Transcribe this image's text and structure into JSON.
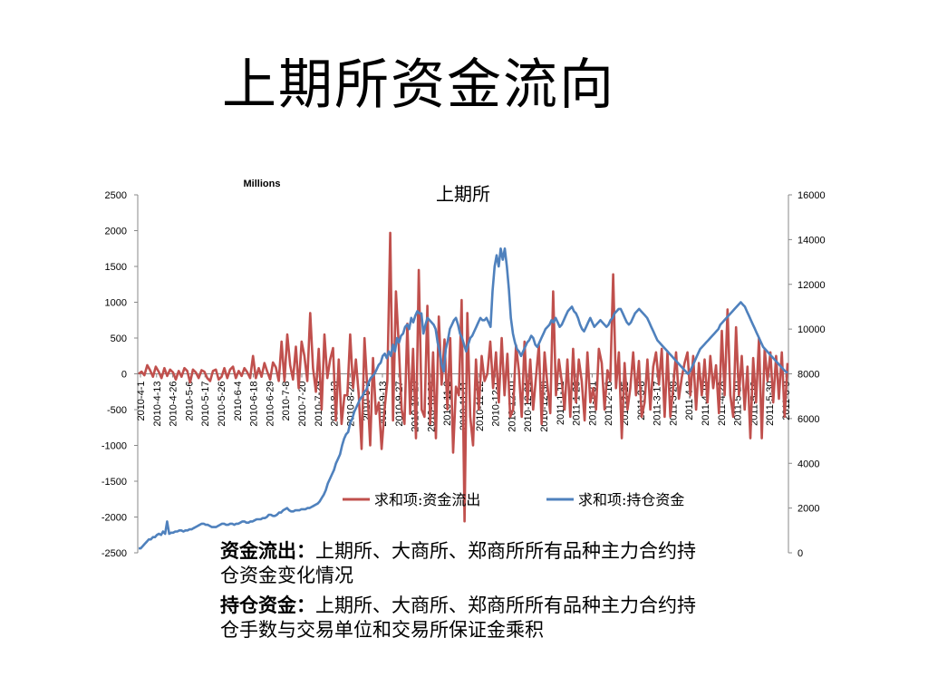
{
  "slide": {
    "title": "上期所资金流向"
  },
  "chart_data": {
    "type": "line",
    "title": "上期所",
    "unit_label": "Millions",
    "grid": false,
    "legend_position": "bottom-inside",
    "left_axis": {
      "min": -2500,
      "max": 2500,
      "step": 500,
      "ticks": [
        "2500",
        "2000",
        "1500",
        "1000",
        "500",
        "0",
        "-500",
        "-1000",
        "-1500",
        "-2000",
        "-2500"
      ]
    },
    "right_axis": {
      "min": 0,
      "max": 16000,
      "step": 2000,
      "ticks": [
        "16000",
        "14000",
        "12000",
        "10000",
        "8000",
        "6000",
        "4000",
        "2000",
        "0"
      ]
    },
    "x_tick_labels": [
      "2010-4-1",
      "2010-4-13",
      "2010-4-26",
      "2010-5-6",
      "2010-5-17",
      "2010-5-26",
      "2010-6-4",
      "2010-6-18",
      "2010-6-29",
      "2010-7-8",
      "2010-7-20",
      "2010-7-29",
      "2010-8-13",
      "2010-8-24",
      "2010-9-2",
      "2010-9-13",
      "2010-9-27",
      "2010-10-13",
      "2010-10-22",
      "2010-11-2",
      "2010-11-11",
      "2010-11-22",
      "2010-12-1",
      "2010-12-10",
      "2010-12-21",
      "2010-12-30",
      "2011-1-11",
      "2011-1-20",
      "2011-1-31",
      "2011-2-16",
      "2011-2-25",
      "2011-3-8",
      "2011-3-17",
      "2011-3-28",
      "2011-4-8",
      "2011-4-19",
      "2011-4-28",
      "2011-5-10",
      "2011-5-19",
      "2011-5-30",
      "2011-6-9"
    ],
    "series": [
      {
        "name": "求和项:资金流出",
        "axis": "left",
        "color": "#C0504D",
        "values": [
          0,
          30,
          -20,
          120,
          50,
          -40,
          100,
          30,
          -60,
          80,
          -30,
          60,
          20,
          -80,
          40,
          -40,
          80,
          40,
          -120,
          60,
          20,
          -60,
          50,
          30,
          -60,
          -100,
          40,
          60,
          -80,
          -40,
          80,
          -60,
          60,
          100,
          -60,
          40,
          -30,
          80,
          20,
          -60,
          250,
          -60,
          80,
          -40,
          150,
          30,
          -80,
          160,
          90,
          -100,
          450,
          -100,
          550,
          120,
          -80,
          380,
          -200,
          450,
          250,
          -100,
          850,
          80,
          -250,
          350,
          -500,
          550,
          -60,
          200,
          360,
          -650,
          200,
          -700,
          -300,
          -300,
          550,
          -200,
          200,
          -300,
          -1050,
          500,
          -200,
          -1000,
          220,
          -560,
          -400,
          -1050,
          -500,
          -100,
          1970,
          -650,
          1150,
          400,
          -500,
          -700,
          700,
          -560,
          350,
          -900,
          1450,
          -500,
          -600,
          950,
          -700,
          300,
          -900,
          800,
          -150,
          480,
          -500,
          500,
          -1100,
          -180,
          -300,
          1030,
          -2060,
          850,
          -600,
          -1000,
          200,
          -500,
          250,
          -100,
          0,
          450,
          -200,
          300,
          -400,
          500,
          -300,
          280,
          -600,
          -500,
          400,
          50,
          -600,
          450,
          -400,
          200,
          -500,
          -50,
          400,
          -700,
          300,
          -150,
          -550,
          1150,
          -300,
          200,
          -100,
          -500,
          200,
          -600,
          350,
          -400,
          200,
          -100,
          -650,
          300,
          -400,
          -200,
          -500,
          350,
          150,
          -500,
          50,
          -100,
          1390,
          -200,
          300,
          -900,
          150,
          -500,
          -200,
          300,
          -300,
          180,
          -600,
          -400,
          200,
          -500,
          100,
          300,
          -150,
          350,
          -600,
          300,
          -600,
          -200,
          300,
          -350,
          -50,
          150,
          300,
          -300,
          250,
          -500,
          150,
          -300,
          200,
          -400,
          250,
          -200,
          120,
          -550,
          600,
          -300,
          900,
          -300,
          -600,
          650,
          -300,
          250,
          -500,
          100,
          -900,
          220,
          -400,
          500,
          -900,
          350,
          -100,
          300,
          -400,
          250,
          -350,
          300,
          -600,
          150
        ]
      },
      {
        "name": "求和项:持仓资金",
        "axis": "right",
        "color": "#4F81BD",
        "values": [
          200,
          200,
          300,
          400,
          500,
          600,
          600,
          700,
          700,
          800,
          850,
          800,
          950,
          850,
          1400,
          850,
          900,
          900,
          950,
          950,
          1000,
          1000,
          950,
          1000,
          1000,
          1050,
          1050,
          1100,
          1150,
          1200,
          1250,
          1300,
          1300,
          1250,
          1250,
          1200,
          1150,
          1150,
          1150,
          1200,
          1250,
          1300,
          1300,
          1250,
          1250,
          1300,
          1300,
          1250,
          1300,
          1300,
          1350,
          1400,
          1400,
          1350,
          1350,
          1400,
          1400,
          1450,
          1500,
          1500,
          1500,
          1550,
          1550,
          1600,
          1700,
          1700,
          1650,
          1650,
          1700,
          1800,
          1800,
          1900,
          1950,
          2000,
          1900,
          1850,
          1850,
          1900,
          1900,
          1900,
          1950,
          1950,
          1950,
          2000,
          2000,
          2050,
          2100,
          2150,
          2200,
          2300,
          2450,
          2600,
          2800,
          3100,
          3300,
          3500,
          3700,
          4000,
          4200,
          4400,
          4800,
          5100,
          5300,
          5400,
          5800,
          6000,
          6300,
          6500,
          6700,
          6900,
          7000,
          7200,
          7300,
          7600,
          7800,
          7900,
          8000,
          8200,
          8400,
          8500,
          8800,
          8900,
          8700,
          9000,
          8800,
          9300,
          9000,
          9600,
          9400,
          9700,
          9800,
          10100,
          10200,
          10000,
          10500,
          10300,
          10600,
          10800,
          10700,
          10700,
          9800,
          10200,
          10500,
          10400,
          10300,
          10200,
          10000,
          9400,
          9000,
          8400,
          8100,
          9100,
          9500,
          10000,
          10200,
          10400,
          10500,
          10200,
          9800,
          9600,
          9300,
          9000,
          9300,
          9600,
          9700,
          9900,
          10100,
          10300,
          10500,
          10400,
          10400,
          10500,
          10300,
          10100,
          11700,
          12800,
          13300,
          12800,
          13600,
          13100,
          13600,
          12800,
          11800,
          10500,
          9800,
          9400,
          9100,
          9000,
          8800,
          9000,
          9200,
          9400,
          9500,
          9700,
          9600,
          9300,
          9200,
          9400,
          9600,
          9800,
          10000,
          10100,
          10200,
          10400,
          10300,
          10500,
          10300,
          10100,
          10200,
          10400,
          10600,
          10800,
          10900,
          11000,
          10800,
          10700,
          10500,
          10200,
          10000,
          9900,
          10100,
          10300,
          10500,
          10300,
          10100,
          10200,
          10300,
          10400,
          10300,
          10200,
          10100,
          10200,
          10400,
          10500,
          10700,
          10800,
          10900,
          10900,
          10700,
          10500,
          10300,
          10200,
          10300,
          10500,
          10700,
          10800,
          10900,
          10800,
          10700,
          10600,
          10500,
          10300,
          10100,
          9900,
          9700,
          9500,
          9400,
          9300,
          9200,
          9100,
          9000,
          8900,
          8800,
          8700,
          8600,
          8500,
          8400,
          8300,
          8200,
          8100,
          8000,
          8100,
          8300,
          8500,
          8700,
          8900,
          9100,
          9200,
          9300,
          9400,
          9500,
          9600,
          9700,
          9800,
          9900,
          10000,
          10200,
          10300,
          10400,
          10500,
          10600,
          10700,
          10800,
          10900,
          11000,
          11100,
          11200,
          11100,
          11000,
          10800,
          10600,
          10400,
          10200,
          10000,
          9800,
          9600,
          9400,
          9200,
          9100,
          9000,
          8900,
          8800,
          8700,
          8600,
          8500,
          8400,
          8300,
          8200,
          8100,
          8050
        ]
      }
    ]
  },
  "descriptions": [
    {
      "label": "资金流出：",
      "text": "上期所、大商所、郑商所所有品种主力合约持仓资金变化情况"
    },
    {
      "label": "持仓资金：",
      "text": "上期所、大商所、郑商所所有品种主力合约持仓手数与交易单位和交易所保证金乘积"
    }
  ]
}
